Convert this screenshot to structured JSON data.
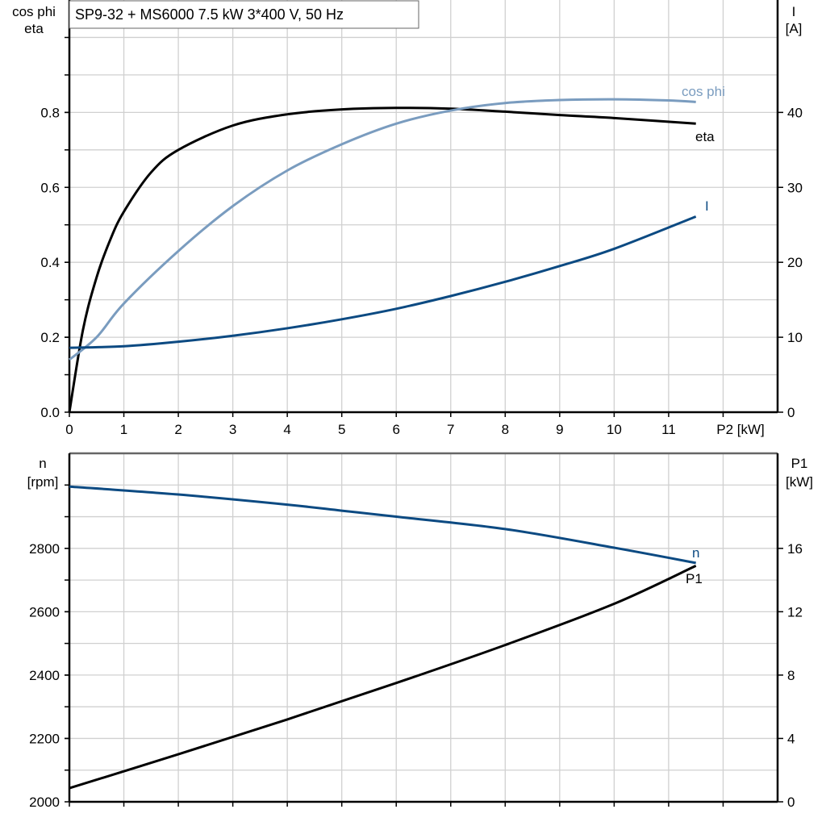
{
  "title": "SP9-32 + MS6000   7.5 kW   3*400 V, 50 Hz",
  "chart_data": [
    {
      "type": "line",
      "xlabel": "P2 [kW]",
      "xlim": [
        0,
        13
      ],
      "xticks": [
        "0",
        "1",
        "2",
        "3",
        "4",
        "5",
        "6",
        "7",
        "8",
        "9",
        "10",
        "11"
      ],
      "ylabel_left": [
        "cos phi",
        "eta"
      ],
      "ylim_left": [
        0,
        1.1
      ],
      "yticks_left": [
        "0.0",
        "0.2",
        "0.4",
        "0.6",
        "0.8"
      ],
      "ylabel_right": [
        "I",
        "[A]"
      ],
      "ylim_right": [
        0,
        55
      ],
      "yticks_right": [
        "0",
        "10",
        "20",
        "30",
        "40"
      ],
      "grid": true,
      "series": [
        {
          "name": "eta",
          "axis": "left",
          "color": "#000000",
          "x": [
            0,
            0.25,
            0.5,
            0.75,
            1,
            1.5,
            2,
            3,
            4,
            5,
            6,
            7,
            8,
            9,
            10,
            11.5
          ],
          "y": [
            0,
            0.22,
            0.36,
            0.46,
            0.535,
            0.64,
            0.7,
            0.765,
            0.795,
            0.808,
            0.812,
            0.81,
            0.802,
            0.793,
            0.785,
            0.77
          ]
        },
        {
          "name": "cos phi",
          "axis": "left",
          "color": "#7a9cbf",
          "x": [
            0,
            0.5,
            1,
            2,
            3,
            4,
            5,
            6,
            7,
            8,
            9,
            10,
            11,
            11.5
          ],
          "y": [
            0.14,
            0.2,
            0.29,
            0.43,
            0.55,
            0.645,
            0.715,
            0.77,
            0.805,
            0.825,
            0.833,
            0.835,
            0.832,
            0.828
          ]
        },
        {
          "name": "I",
          "axis": "right",
          "color": "#0c4a82",
          "x": [
            0,
            1,
            2,
            3,
            4,
            5,
            6,
            7,
            8,
            9,
            10,
            11.5
          ],
          "y": [
            8.6,
            8.8,
            9.4,
            10.2,
            11.2,
            12.4,
            13.8,
            15.5,
            17.4,
            19.5,
            21.8,
            26.1
          ]
        }
      ]
    },
    {
      "type": "line",
      "xlim": [
        0,
        13
      ],
      "ylabel_left": [
        "n",
        "[rpm]"
      ],
      "ylim_left": [
        2000,
        3100
      ],
      "yticks_left": [
        "2000",
        "2200",
        "2400",
        "2600",
        "2800"
      ],
      "ylabel_right": [
        "P1",
        "[kW]"
      ],
      "ylim_right": [
        0,
        22
      ],
      "yticks_right": [
        "0",
        "4",
        "8",
        "12",
        "16"
      ],
      "grid": true,
      "series": [
        {
          "name": "n",
          "axis": "left",
          "color": "#0c4a82",
          "x": [
            0,
            2,
            4,
            5,
            6,
            8,
            10,
            11.5
          ],
          "y": [
            2995,
            2970,
            2938,
            2919,
            2900,
            2861,
            2802,
            2754
          ]
        },
        {
          "name": "P1",
          "axis": "right",
          "color": "#000000",
          "x": [
            0,
            2,
            4,
            6,
            8,
            10,
            11.5
          ],
          "y": [
            0.86,
            3.0,
            5.2,
            7.5,
            9.9,
            12.5,
            14.9
          ]
        }
      ]
    }
  ]
}
